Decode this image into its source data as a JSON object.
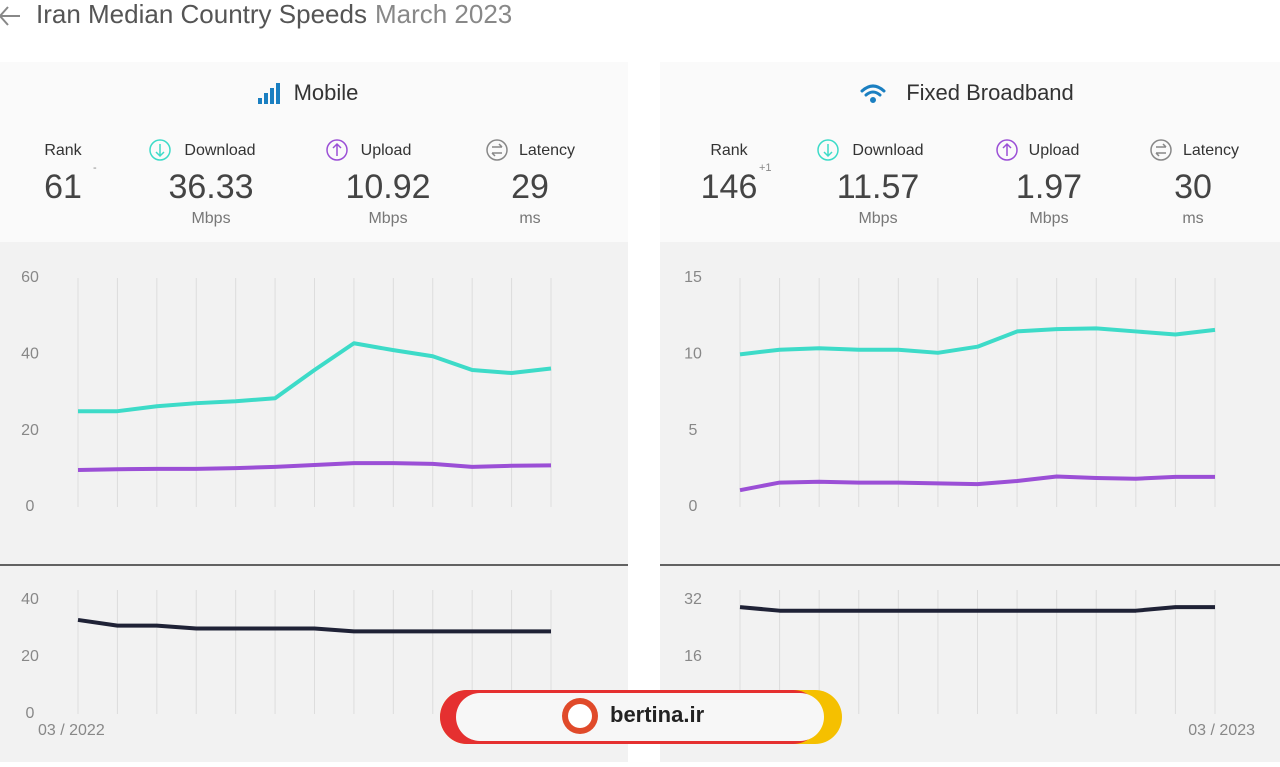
{
  "header": {
    "title": "Iran Median Country Speeds",
    "period": "March 2023"
  },
  "panels": [
    {
      "title": "Mobile",
      "stats": [
        {
          "label": "Rank",
          "value": "61",
          "change": "-"
        },
        {
          "label": "Download",
          "value": "36.33",
          "unit": "Mbps"
        },
        {
          "label": "Upload",
          "value": "10.92",
          "unit": "Mbps"
        },
        {
          "label": "Latency",
          "value": "29",
          "unit": "ms"
        }
      ]
    },
    {
      "title": "Fixed Broadband",
      "stats": [
        {
          "label": "Rank",
          "value": "146",
          "change": "+1"
        },
        {
          "label": "Download",
          "value": "11.57",
          "unit": "Mbps"
        },
        {
          "label": "Upload",
          "value": "1.97",
          "unit": "Mbps"
        },
        {
          "label": "Latency",
          "value": "30",
          "unit": "ms"
        }
      ]
    }
  ],
  "chart_data": [
    {
      "type": "line",
      "categories": [
        null,
        null,
        null,
        null,
        null,
        null,
        null,
        null,
        null,
        null,
        null,
        null,
        null
      ],
      "ylim": [
        0,
        60
      ],
      "yticks": [
        0,
        20,
        40,
        60
      ],
      "series": [
        {
          "color": "#3ddbc8",
          "values": [
            25.1,
            25.1,
            26.4,
            27.2,
            27.7,
            28.5,
            35.9,
            42.9,
            41.1,
            39.5,
            35.9,
            35.1,
            36.3
          ]
        },
        {
          "color": "#9b4fd6",
          "values": [
            9.7,
            9.9,
            10,
            10,
            10.2,
            10.5,
            11,
            11.5,
            11.5,
            11.3,
            10.5,
            10.8,
            10.9
          ]
        }
      ]
    },
    {
      "type": "line",
      "categories": [
        "03 / 2022",
        null,
        null,
        null,
        null,
        null,
        null,
        null,
        null,
        null,
        null,
        null,
        null
      ],
      "ylim": [
        0,
        40
      ],
      "yticks": [
        0,
        20,
        40
      ],
      "series": [
        {
          "color": "#1f2236",
          "values": [
            33,
            31,
            31,
            30,
            30,
            30,
            30,
            29,
            29,
            29,
            29,
            29,
            29
          ]
        }
      ]
    },
    {
      "type": "line",
      "categories": [
        null,
        null,
        null,
        null,
        null,
        null,
        null,
        null,
        null,
        null,
        null,
        null,
        null
      ],
      "ylim": [
        0,
        15
      ],
      "yticks": [
        0,
        5,
        10,
        15
      ],
      "series": [
        {
          "color": "#3ddbc8",
          "values": [
            10,
            10.3,
            10.4,
            10.3,
            10.3,
            10.1,
            10.5,
            11.5,
            11.65,
            11.7,
            11.5,
            11.3,
            11.6
          ]
        },
        {
          "color": "#9b4fd6",
          "values": [
            1.1,
            1.6,
            1.65,
            1.6,
            1.6,
            1.55,
            1.5,
            1.7,
            2,
            1.9,
            1.85,
            1.97,
            1.97
          ]
        }
      ]
    },
    {
      "type": "line",
      "categories": [
        null,
        null,
        null,
        null,
        null,
        null,
        null,
        null,
        null,
        null,
        null,
        null,
        "03 / 2023"
      ],
      "ylim": [
        0,
        32
      ],
      "yticks": [
        16,
        32
      ],
      "series": [
        {
          "color": "#1f2236",
          "values": [
            30,
            29,
            29,
            29,
            29,
            29,
            29,
            29,
            29,
            29,
            29,
            30,
            30
          ]
        }
      ]
    }
  ],
  "watermark": "bertina.ir"
}
